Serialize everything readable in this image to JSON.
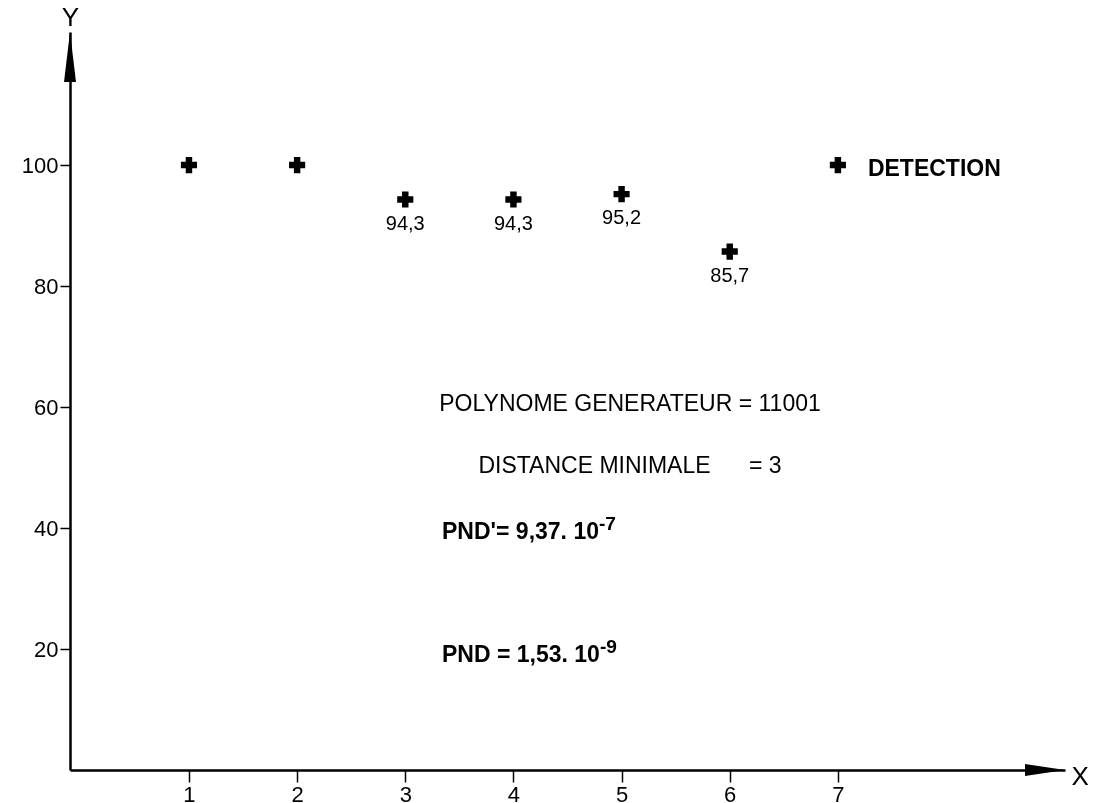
{
  "chart_data": {
    "type": "scatter",
    "xlabel": "X",
    "ylabel": "Y",
    "x": [
      1,
      2,
      3,
      4,
      5,
      6,
      7
    ],
    "series": [
      {
        "name": "DETECTION",
        "color": "#000000",
        "values": [
          100,
          100,
          94.3,
          94.3,
          95.2,
          85.7,
          100
        ],
        "value_labels": [
          null,
          null,
          "94,3",
          "94,3",
          "95,2",
          "85,7",
          null
        ]
      }
    ],
    "xlim": [
      -0.1,
      9.1
    ],
    "xticks": [
      1,
      2,
      3,
      4,
      5,
      6,
      7
    ],
    "ylim": [
      0,
      122
    ],
    "yticks": [
      20,
      40,
      60,
      80,
      100
    ],
    "marker": "cross",
    "grid": false,
    "legend": "top right",
    "annotations": [
      "POLYNOME GENERATEUR = 11001",
      "DISTANCE MINIMALE      = 3",
      "PND'= 9,37. 10$^{-7}$",
      "PND = 1,53. 10$^{-9}$"
    ]
  }
}
